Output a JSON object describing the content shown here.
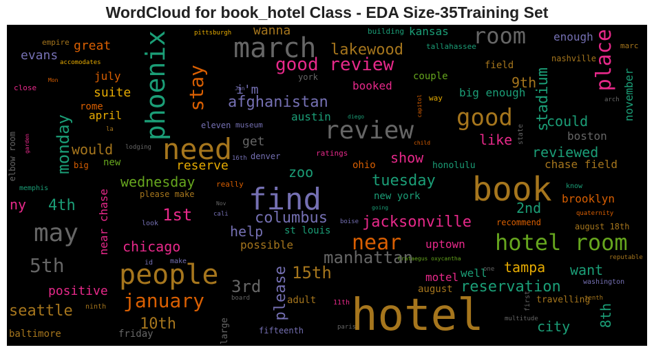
{
  "chart_data": {
    "type": "wordcloud",
    "title": "WordCloud for book_hotel Class - EDA Size-35Training Set",
    "background": "#000000",
    "palette": [
      "#1b9e77",
      "#d95f02",
      "#7570b3",
      "#e7298a",
      "#66a61e",
      "#e6ab02",
      "#a6761d",
      "#666666"
    ],
    "words": [
      {
        "text": "hotel",
        "color": "#a6761d"
      },
      {
        "text": "book",
        "color": "#a6761d"
      },
      {
        "text": "find",
        "color": "#7570b3"
      },
      {
        "text": "need",
        "color": "#a6761d"
      },
      {
        "text": "people",
        "color": "#a6761d"
      },
      {
        "text": "march",
        "color": "#666666"
      },
      {
        "text": "review",
        "color": "#666666"
      },
      {
        "text": "phoenix",
        "color": "#1b9e77"
      },
      {
        "text": "hotel room",
        "color": "#66a61e"
      },
      {
        "text": "room",
        "color": "#666666"
      },
      {
        "text": "may",
        "color": "#666666"
      },
      {
        "text": "good",
        "color": "#a6761d"
      },
      {
        "text": "near",
        "color": "#d95f02"
      },
      {
        "text": "place",
        "color": "#e7298a"
      },
      {
        "text": "good review",
        "color": "#e7298a"
      },
      {
        "text": "january",
        "color": "#d95f02"
      },
      {
        "text": "stay",
        "color": "#d95f02"
      },
      {
        "text": "5th",
        "color": "#666666"
      },
      {
        "text": "monday",
        "color": "#1b9e77"
      },
      {
        "text": "manhattan",
        "color": "#666666"
      },
      {
        "text": "15th",
        "color": "#a6761d"
      },
      {
        "text": "jacksonville",
        "color": "#e7298a"
      },
      {
        "text": "stadium",
        "color": "#1b9e77"
      },
      {
        "text": "afghanistan",
        "color": "#7570b3"
      },
      {
        "text": "1st",
        "color": "#e7298a"
      },
      {
        "text": "3rd",
        "color": "#666666"
      },
      {
        "text": "reservation",
        "color": "#1b9e77"
      },
      {
        "text": "please",
        "color": "#7570b3"
      },
      {
        "text": "lakewood",
        "color": "#a6761d"
      },
      {
        "text": "columbus",
        "color": "#7570b3"
      },
      {
        "text": "tuesday",
        "color": "#1b9e77"
      },
      {
        "text": "wednesday",
        "color": "#66a61e"
      },
      {
        "text": "4th",
        "color": "#1b9e77"
      },
      {
        "text": "10th",
        "color": "#a6761d"
      },
      {
        "text": "seattle",
        "color": "#a6761d"
      },
      {
        "text": "tampa",
        "color": "#e6ab02"
      },
      {
        "text": "chicago",
        "color": "#e7298a"
      },
      {
        "text": "would",
        "color": "#a6761d"
      },
      {
        "text": "could",
        "color": "#1b9e77"
      },
      {
        "text": "reviewed",
        "color": "#1b9e77"
      },
      {
        "text": "reserve",
        "color": "#e6ab02"
      },
      {
        "text": "want",
        "color": "#1b9e77"
      },
      {
        "text": "city",
        "color": "#1b9e77"
      },
      {
        "text": "8th",
        "color": "#1b9e77"
      },
      {
        "text": "9th",
        "color": "#a6761d"
      },
      {
        "text": "2nd",
        "color": "#1b9e77"
      },
      {
        "text": "like",
        "color": "#e7298a"
      },
      {
        "text": "show",
        "color": "#e7298a"
      },
      {
        "text": "uptown",
        "color": "#e7298a"
      },
      {
        "text": "zoo",
        "color": "#1b9e77"
      },
      {
        "text": "help",
        "color": "#7570b3"
      },
      {
        "text": "get",
        "color": "#666666"
      },
      {
        "text": "i'm",
        "color": "#7570b3"
      },
      {
        "text": "suite",
        "color": "#e6ab02"
      },
      {
        "text": "great",
        "color": "#d95f02"
      },
      {
        "text": "evans",
        "color": "#7570b3"
      },
      {
        "text": "ny",
        "color": "#e7298a"
      },
      {
        "text": "positive",
        "color": "#e7298a"
      },
      {
        "text": "wanna",
        "color": "#a6761d"
      },
      {
        "text": "kansas",
        "color": "#1b9e77"
      },
      {
        "text": "booked",
        "color": "#e7298a"
      },
      {
        "text": "boston",
        "color": "#666666"
      },
      {
        "text": "brooklyn",
        "color": "#d95f02"
      },
      {
        "text": "november",
        "color": "#1b9e77"
      },
      {
        "text": "near chase",
        "color": "#e7298a"
      },
      {
        "text": "april",
        "color": "#e6ab02"
      },
      {
        "text": "july",
        "color": "#d95f02"
      },
      {
        "text": "big enough",
        "color": "#1b9e77"
      },
      {
        "text": "chase field",
        "color": "#a6761d"
      },
      {
        "text": "austin",
        "color": "#1b9e77"
      },
      {
        "text": "enough",
        "color": "#7570b3"
      },
      {
        "text": "possible",
        "color": "#a6761d"
      },
      {
        "text": "st louis",
        "color": "#1b9e77"
      },
      {
        "text": "new york",
        "color": "#1b9e77"
      },
      {
        "text": "baltimore",
        "color": "#a6761d"
      },
      {
        "text": "friday",
        "color": "#666666"
      },
      {
        "text": "fifteenth",
        "color": "#7570b3"
      },
      {
        "text": "motel",
        "color": "#e7298a"
      },
      {
        "text": "well",
        "color": "#1b9e77"
      },
      {
        "text": "adult",
        "color": "#a6761d"
      },
      {
        "text": "travelling",
        "color": "#a6761d"
      },
      {
        "text": "ohio",
        "color": "#d95f02"
      },
      {
        "text": "honolulu",
        "color": "#1b9e77"
      },
      {
        "text": "new",
        "color": "#66a61e"
      },
      {
        "text": "rome",
        "color": "#d95f02"
      },
      {
        "text": "couple",
        "color": "#66a61e"
      },
      {
        "text": "august",
        "color": "#a6761d"
      },
      {
        "text": "august 18th",
        "color": "#a6761d"
      },
      {
        "text": "recommend",
        "color": "#d95f02"
      },
      {
        "text": "field",
        "color": "#a6761d"
      },
      {
        "text": "nashville",
        "color": "#a6761d"
      },
      {
        "text": "large",
        "color": "#666666"
      },
      {
        "text": "please make",
        "color": "#a6761d"
      },
      {
        "text": "denver",
        "color": "#7570b3"
      },
      {
        "text": "eleven",
        "color": "#7570b3"
      },
      {
        "text": "york",
        "color": "#666666"
      },
      {
        "text": "big",
        "color": "#d95f02"
      },
      {
        "text": "tallahassee",
        "color": "#1b9e77"
      },
      {
        "text": "building",
        "color": "#1b9e77"
      },
      {
        "text": "elbow room",
        "color": "#666666"
      },
      {
        "text": "museum",
        "color": "#7570b3"
      },
      {
        "text": "memphis",
        "color": "#1b9e77"
      },
      {
        "text": "close",
        "color": "#e7298a"
      },
      {
        "text": "empire",
        "color": "#a6761d"
      },
      {
        "text": "marc",
        "color": "#a6761d"
      },
      {
        "text": "way",
        "color": "#e6ab02"
      },
      {
        "text": "really",
        "color": "#d95f02"
      },
      {
        "text": "ratings",
        "color": "#e7298a"
      },
      {
        "text": "know",
        "color": "#1b9e77"
      },
      {
        "text": "look",
        "color": "#7570b3"
      },
      {
        "text": "id",
        "color": "#7570b3"
      },
      {
        "text": "make",
        "color": "#7570b3"
      },
      {
        "text": "washington",
        "color": "#7570b3"
      },
      {
        "text": "board",
        "color": "#666666"
      },
      {
        "text": "ninth",
        "color": "#a6761d"
      },
      {
        "text": "11th",
        "color": "#e7298a"
      },
      {
        "text": "tenth",
        "color": "#a6761d"
      },
      {
        "text": "first",
        "color": "#666666"
      },
      {
        "text": "multitude",
        "color": "#666666"
      },
      {
        "text": "paris",
        "color": "#666666"
      },
      {
        "text": "reputable",
        "color": "#a6761d"
      },
      {
        "text": "one",
        "color": "#666666"
      },
      {
        "text": "Crataegus oxycantha",
        "color": "#66a61e"
      },
      {
        "text": "quaternity",
        "color": "#d95f02"
      },
      {
        "text": "boise",
        "color": "#7570b3"
      },
      {
        "text": "going",
        "color": "#1b9e77"
      },
      {
        "text": "cali",
        "color": "#7570b3"
      },
      {
        "text": "Nov",
        "color": "#666666"
      },
      {
        "text": "16th",
        "color": "#7570b3"
      },
      {
        "text": "lodging",
        "color": "#666666"
      },
      {
        "text": "la",
        "color": "#a6761d"
      },
      {
        "text": "garden",
        "color": "#e7298a"
      },
      {
        "text": "child",
        "color": "#d95f02"
      },
      {
        "text": "state",
        "color": "#666666"
      },
      {
        "text": "arch",
        "color": "#666666"
      },
      {
        "text": "capitol",
        "color": "#d95f02"
      },
      {
        "text": "diego",
        "color": "#1b9e77"
      },
      {
        "text": "Jan",
        "color": "#7570b3"
      },
      {
        "text": "Mon",
        "color": "#d95f02"
      },
      {
        "text": "accomodates",
        "color": "#e6ab02"
      },
      {
        "text": "pittsburgh",
        "color": "#e6ab02"
      }
    ]
  }
}
